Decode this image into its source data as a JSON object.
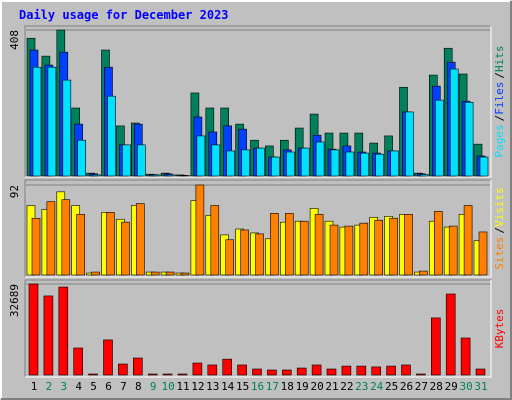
{
  "title": "Daily usage for December 2023",
  "chart_data": [
    {
      "type": "bar",
      "ylim": [
        0,
        408
      ],
      "yticks": [
        408
      ],
      "legend_separator": "/",
      "series": [
        {
          "name": "Hits",
          "color": "#00805c",
          "values": [
            385,
            335,
            408,
            190,
            8,
            352,
            140,
            148,
            5,
            8,
            3,
            232,
            190,
            190,
            145,
            100,
            84,
            100,
            134,
            173,
            120,
            120,
            120,
            92,
            112,
            248,
            8,
            282,
            357,
            285,
            89
          ]
        },
        {
          "name": "Files",
          "color": "#0040ff",
          "values": [
            352,
            310,
            346,
            145,
            6,
            304,
            87,
            145,
            4,
            6,
            2,
            165,
            123,
            140,
            131,
            78,
            53,
            73,
            78,
            114,
            75,
            84,
            67,
            64,
            70,
            179,
            6,
            251,
            318,
            209,
            56
          ]
        },
        {
          "name": "Pages",
          "color": "#00e0ff",
          "values": [
            304,
            304,
            268,
            100,
            3,
            223,
            87,
            87,
            3,
            3,
            1,
            112,
            87,
            70,
            73,
            78,
            53,
            67,
            78,
            95,
            73,
            67,
            64,
            61,
            70,
            179,
            4,
            212,
            299,
            206,
            53
          ]
        }
      ]
    },
    {
      "type": "bar",
      "ylim": [
        0,
        92
      ],
      "yticks": [
        92
      ],
      "legend_separator": "/",
      "series": [
        {
          "name": "Visits",
          "color": "#ffff00",
          "values": [
            71,
            67,
            85,
            71,
            2,
            64,
            57,
            71,
            3,
            3,
            2,
            76,
            61,
            41,
            47,
            43,
            37,
            54,
            55,
            68,
            55,
            49,
            51,
            59,
            60,
            62,
            3,
            55,
            49,
            62,
            35
          ]
        },
        {
          "name": "Sites",
          "color": "#ff8000",
          "values": [
            58,
            75,
            77,
            62,
            3,
            64,
            54,
            73,
            3,
            3,
            2,
            92,
            71,
            36,
            46,
            42,
            63,
            63,
            55,
            62,
            51,
            50,
            53,
            56,
            58,
            62,
            4,
            65,
            50,
            71,
            44
          ]
        }
      ]
    },
    {
      "type": "bar",
      "ylim": [
        0,
        32689
      ],
      "yticks": [
        32689
      ],
      "series": [
        {
          "name": "KBytes",
          "color": "#ff0000",
          "values": [
            32689,
            28400,
            31600,
            9700,
            360,
            12600,
            3950,
            6100,
            360,
            360,
            360,
            4300,
            3600,
            5700,
            3600,
            2150,
            1800,
            1800,
            2500,
            3600,
            2150,
            3200,
            3200,
            2900,
            3200,
            3600,
            360,
            20500,
            29100,
            13300,
            2150
          ]
        }
      ],
      "categories": [
        "1",
        "2",
        "3",
        "4",
        "5",
        "6",
        "7",
        "8",
        "9",
        "10",
        "11",
        "12",
        "13",
        "14",
        "15",
        "16",
        "17",
        "18",
        "19",
        "20",
        "21",
        "22",
        "23",
        "24",
        "25",
        "26",
        "27",
        "28",
        "29",
        "30",
        "31"
      ],
      "category_colors": [
        "#000000",
        "#00805c",
        "#00805c",
        "#000000",
        "#000000",
        "#000000",
        "#000000",
        "#000000",
        "#00805c",
        "#00805c",
        "#000000",
        "#000000",
        "#000000",
        "#000000",
        "#000000",
        "#00805c",
        "#00805c",
        "#000000",
        "#000000",
        "#000000",
        "#000000",
        "#000000",
        "#00805c",
        "#00805c",
        "#000000",
        "#000000",
        "#000000",
        "#000000",
        "#000000",
        "#00805c",
        "#00805c"
      ]
    }
  ]
}
